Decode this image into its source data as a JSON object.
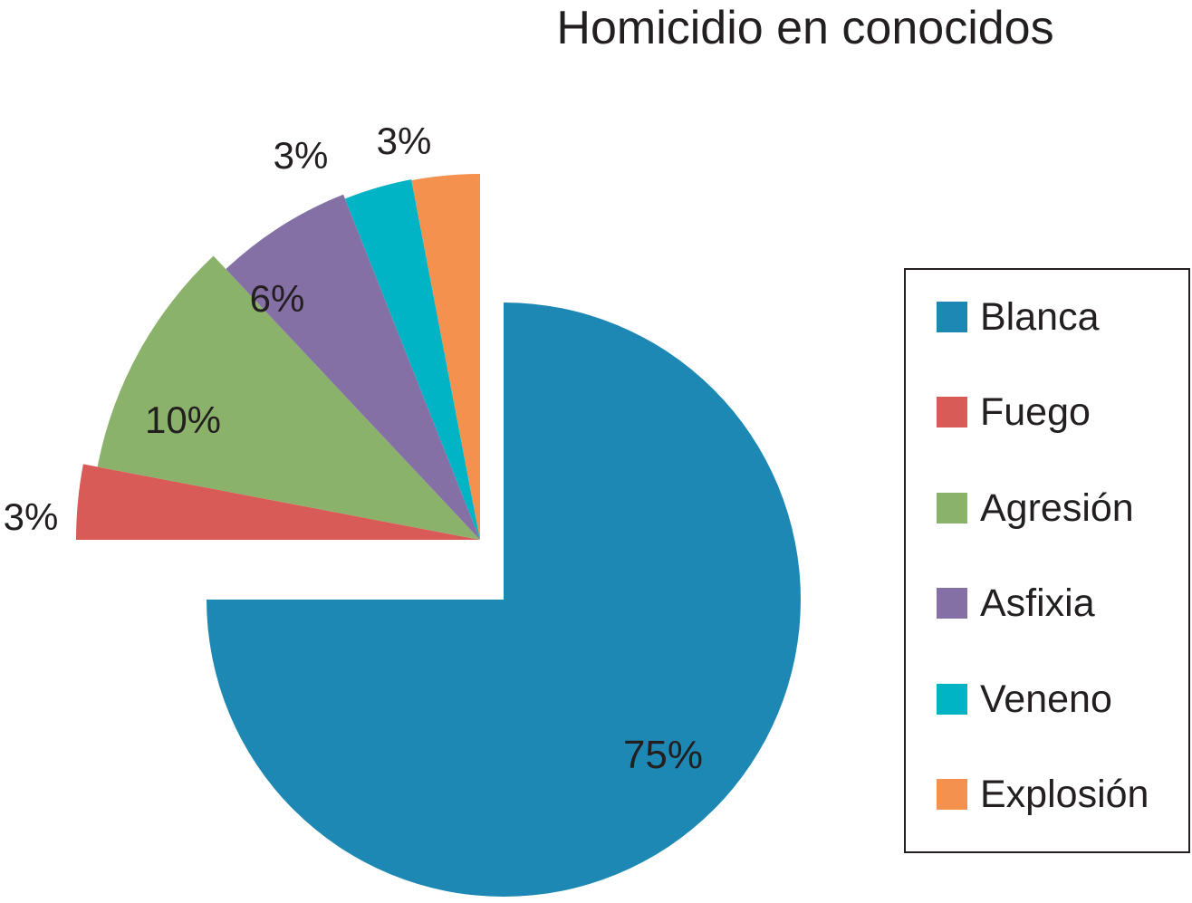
{
  "chart_data": {
    "type": "pie",
    "title": "Homicidio en conocidos",
    "slices": [
      {
        "label": "Blanca",
        "value": 75,
        "display": "75%",
        "color": "#1e88b4"
      },
      {
        "label": "Fuego",
        "value": 3,
        "display": "3%",
        "color": "#d95b58"
      },
      {
        "label": "Agresión",
        "value": 10,
        "display": "10%",
        "color": "#8bb26a"
      },
      {
        "label": "Asfixia",
        "value": 6,
        "display": "6%",
        "color": "#8570a6"
      },
      {
        "label": "Veneno",
        "value": 3,
        "display": "3%",
        "color": "#00b3c5"
      },
      {
        "label": "Explosión",
        "value": 3,
        "display": "3%",
        "color": "#f5914e"
      }
    ],
    "exploded": true,
    "legend_position": "right"
  }
}
